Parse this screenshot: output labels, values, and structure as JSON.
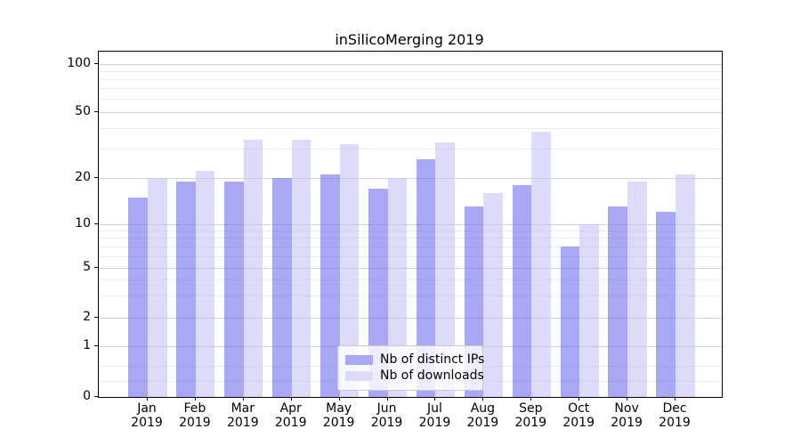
{
  "chart_data": {
    "type": "bar",
    "title": "inSilicoMerging 2019",
    "x_categories": [
      "Jan",
      "Feb",
      "Mar",
      "Apr",
      "May",
      "Jun",
      "Jul",
      "Aug",
      "Sep",
      "Oct",
      "Nov",
      "Dec"
    ],
    "x_sub_label": "2019",
    "y_ticks": [
      100,
      50,
      20,
      10,
      5,
      2,
      1,
      0
    ],
    "y_minor_gridlines": [
      0.3,
      0.6,
      3,
      4,
      6,
      7,
      8,
      9,
      30,
      40,
      60,
      70,
      80,
      90
    ],
    "yscale": "symlog",
    "ylim": [
      0,
      120
    ],
    "grid": "horizontal major and minor gridlines",
    "legend_position": "lower center",
    "series": [
      {
        "name": "Nb of distinct IPs",
        "fill": "rgba(110,110,238,0.6)",
        "swatch_color": "#a8a8f5",
        "values": [
          15,
          19,
          19,
          20,
          21,
          17,
          26,
          13,
          18,
          7,
          13,
          12
        ]
      },
      {
        "name": "Nb of downloads",
        "fill": "rgba(197,197,247,0.6)",
        "swatch_color": "#dcdcfa",
        "values": [
          20,
          22,
          34,
          34,
          32,
          20,
          33,
          16,
          38,
          10,
          19,
          21
        ]
      }
    ]
  }
}
